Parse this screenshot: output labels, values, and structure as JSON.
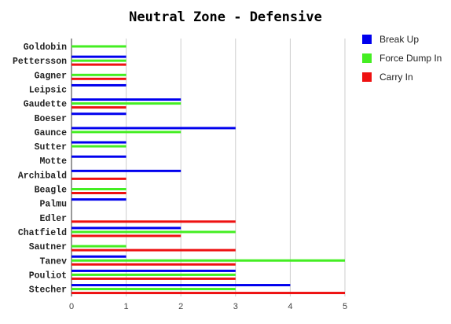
{
  "chart_data": {
    "type": "bar",
    "orientation": "horizontal",
    "title": "Neutral Zone - Defensive",
    "categories": [
      "Goldobin",
      "Pettersson",
      "Gagner",
      "Leipsic",
      "Gaudette",
      "Boeser",
      "Gaunce",
      "Sutter",
      "Motte",
      "Archibald",
      "Beagle",
      "Palmu",
      "Edler",
      "Chatfield",
      "Sautner",
      "Tanev",
      "Pouliot",
      "Stecher"
    ],
    "series": [
      {
        "name": "Break Up",
        "color": "#0000ee",
        "values": [
          0,
          1,
          0,
          1,
          2,
          1,
          3,
          1,
          1,
          2,
          0,
          1,
          0,
          2,
          0,
          1,
          3,
          4
        ]
      },
      {
        "name": "Force Dump In",
        "color": "#44ee22",
        "values": [
          1,
          1,
          1,
          0,
          2,
          0,
          2,
          1,
          0,
          0,
          1,
          0,
          0,
          3,
          1,
          5,
          3,
          3
        ]
      },
      {
        "name": "Carry In",
        "color": "#ee1111",
        "values": [
          0,
          1,
          1,
          0,
          1,
          0,
          0,
          0,
          0,
          1,
          1,
          0,
          3,
          2,
          3,
          3,
          3,
          5
        ]
      }
    ],
    "xlim": [
      0,
      5
    ],
    "xticks": [
      "0",
      "1",
      "2",
      "3",
      "4",
      "5"
    ],
    "grid": true,
    "legend_position": "right"
  }
}
